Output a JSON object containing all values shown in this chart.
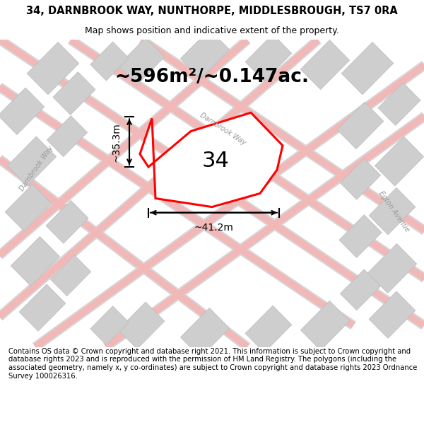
{
  "title": "34, DARNBROOK WAY, NUNTHORPE, MIDDLESBROUGH, TS7 0RA",
  "subtitle": "Map shows position and indicative extent of the property.",
  "area_label": "~596m²/~0.147ac.",
  "number_label": "34",
  "width_label": "~41.2m",
  "height_label": "~35.3m",
  "footer": "Contains OS data © Crown copyright and database right 2021. This information is subject to Crown copyright and database rights 2023 and is reproduced with the permission of HM Land Registry. The polygons (including the associated geometry, namely x, y co-ordinates) are subject to Crown copyright and database rights 2023 Ordnance Survey 100026316.",
  "bg_color": "#ebebeb",
  "plot_fill": "#ffffff",
  "plot_outline": "#ff0000",
  "title_fontsize": 10.5,
  "subtitle_fontsize": 9,
  "area_fontsize": 19,
  "number_fontsize": 22,
  "dim_fontsize": 10,
  "footer_fontsize": 7.2,
  "road_pink": "#f2b8b8",
  "road_gray": "#d6d6d6",
  "block_color": "#cecece",
  "label_color": "#999999",
  "white": "#ffffff"
}
